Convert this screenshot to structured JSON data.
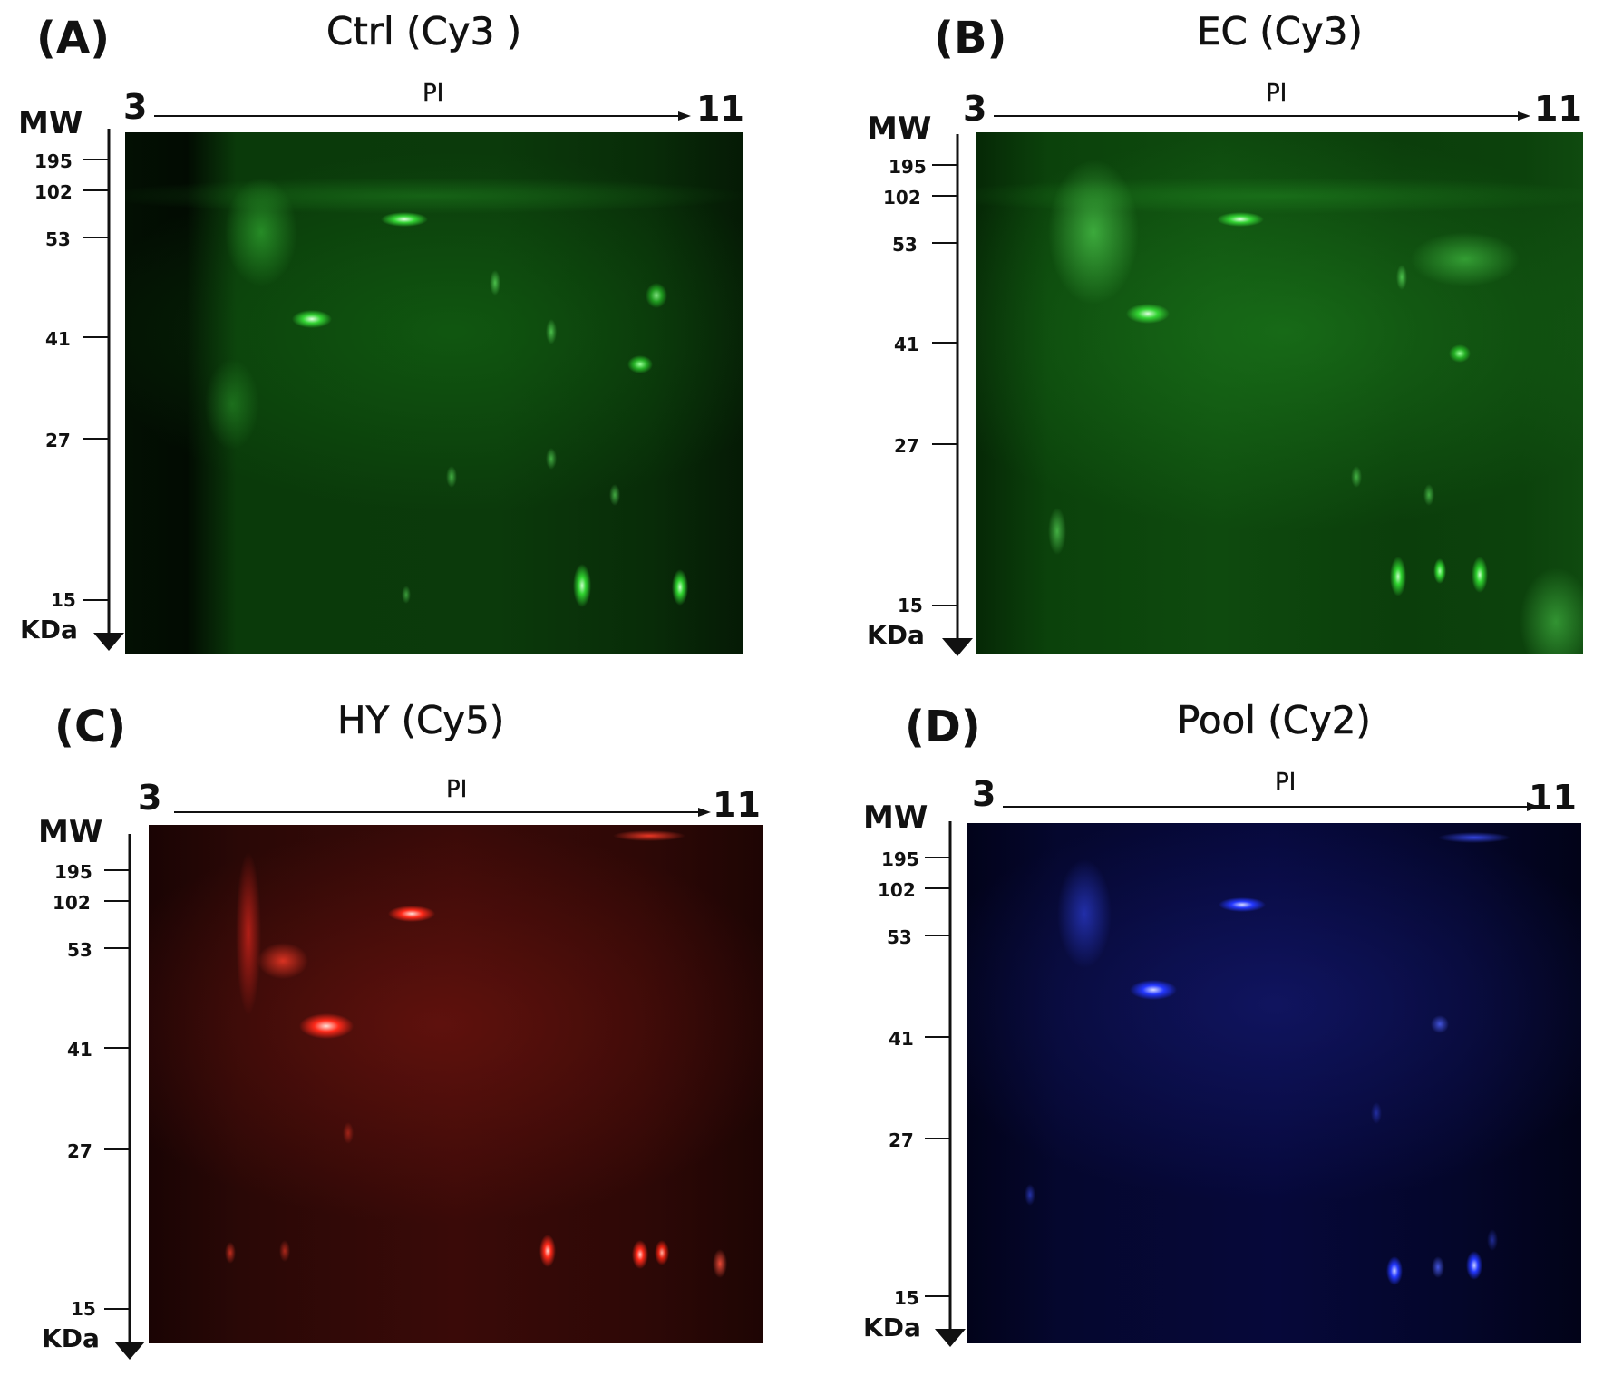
{
  "figure": {
    "panels": [
      {
        "id": "A",
        "label": "(A)",
        "title": "Ctrl (Cy3 )",
        "dye_color": "#3ad43a",
        "pi_axis": {
          "label": "PI",
          "start": "3",
          "end": "11"
        },
        "mw_axis": {
          "label": "MW",
          "unit": "KDa",
          "ticks": [
            "195",
            "102",
            "53",
            "41",
            "27",
            "15"
          ]
        }
      },
      {
        "id": "B",
        "label": "(B)",
        "title": "EC (Cy3)",
        "dye_color": "#3ad43a",
        "pi_axis": {
          "label": "PI",
          "start": "3",
          "end": "11"
        },
        "mw_axis": {
          "label": "MW",
          "unit": "KDa",
          "ticks": [
            "195",
            "102",
            "53",
            "41",
            "27",
            "15"
          ]
        }
      },
      {
        "id": "C",
        "label": "(C)",
        "title": "HY (Cy5)",
        "dye_color": "#ff2a1a",
        "pi_axis": {
          "label": "PI",
          "start": "3",
          "end": "11"
        },
        "mw_axis": {
          "label": "MW",
          "unit": "KDa",
          "ticks": [
            "195",
            "102",
            "53",
            "41",
            "27",
            "15"
          ]
        }
      },
      {
        "id": "D",
        "label": "(D)",
        "title": "Pool (Cy2)",
        "dye_color": "#2438ff",
        "pi_axis": {
          "label": "PI",
          "start": "3",
          "end": "11"
        },
        "mw_axis": {
          "label": "MW",
          "unit": "KDa",
          "ticks": [
            "195",
            "102",
            "53",
            "41",
            "27",
            "15"
          ]
        }
      }
    ]
  }
}
